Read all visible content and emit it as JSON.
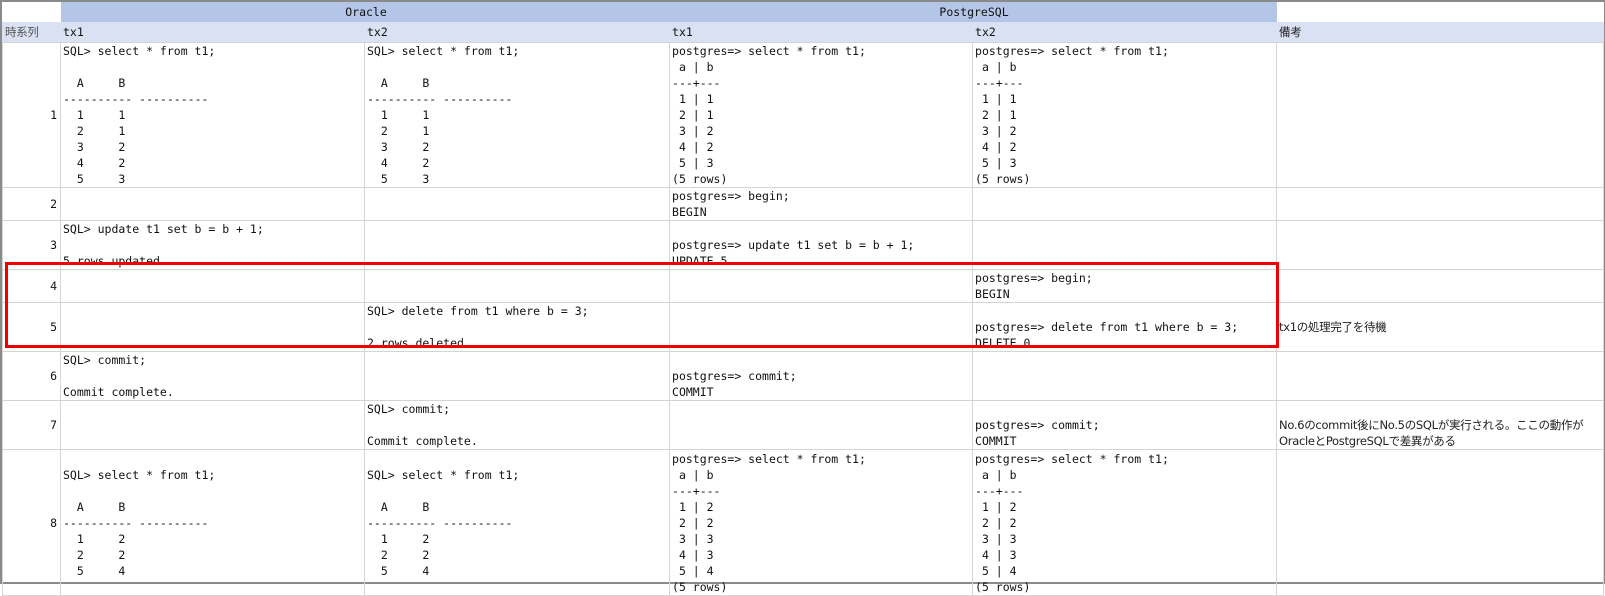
{
  "header": {
    "groups": [
      "Oracle",
      "PostgreSQL"
    ],
    "columns": [
      "時系列",
      "tx1",
      "tx2",
      "tx1",
      "tx2",
      "備考"
    ]
  },
  "rows": [
    {
      "no": "1",
      "ora_tx1": "SQL> select * from t1;\n\n  A     B\n---------- ----------\n  1     1\n  2     1\n  3     2\n  4     2\n  5     3",
      "ora_tx2": "SQL> select * from t1;\n\n  A     B\n---------- ----------\n  1     1\n  2     1\n  3     2\n  4     2\n  5     3",
      "pg_tx1": "postgres=> select * from t1;\n a | b\n---+---\n 1 | 1\n 2 | 1\n 3 | 2\n 4 | 2\n 5 | 3\n(5 rows)",
      "pg_tx2": "postgres=> select * from t1;\n a | b\n---+---\n 1 | 1\n 2 | 1\n 3 | 2\n 4 | 2\n 5 | 3\n(5 rows)",
      "note": ""
    },
    {
      "no": "2",
      "ora_tx1": "",
      "ora_tx2": "",
      "pg_tx1": "postgres=> begin;\nBEGIN",
      "pg_tx2": "",
      "note": ""
    },
    {
      "no": "3",
      "ora_tx1": "SQL> update t1 set b = b + 1;\n\n5 rows updated.",
      "ora_tx2": "",
      "pg_tx1": "postgres=> update t1 set b = b + 1;\nUPDATE 5",
      "pg_tx2": "",
      "note": ""
    },
    {
      "no": "4",
      "ora_tx1": "",
      "ora_tx2": "",
      "pg_tx1": "",
      "pg_tx2": "postgres=> begin;\nBEGIN",
      "note": ""
    },
    {
      "no": "5",
      "ora_tx1": "",
      "ora_tx2": "SQL> delete from t1 where b = 3;\n\n2 rows deleted.",
      "pg_tx1": "",
      "pg_tx2": "postgres=> delete from t1 where b = 3;\nDELETE 0",
      "note": "tx1の処理完了を待機"
    },
    {
      "no": "6",
      "ora_tx1": "SQL> commit;\n\nCommit complete.",
      "ora_tx2": "",
      "pg_tx1": "postgres=> commit;\nCOMMIT",
      "pg_tx2": "",
      "note": ""
    },
    {
      "no": "7",
      "ora_tx1": "",
      "ora_tx2": "SQL> commit;\n\nCommit complete.",
      "pg_tx1": "",
      "pg_tx2": "postgres=> commit;\nCOMMIT",
      "note": "No.6のcommit後にNo.5のSQLが実行される。ここの動作が\nOracleとPostgreSQLで差異がある"
    },
    {
      "no": "8",
      "ora_tx1": "SQL> select * from t1;\n\n  A     B\n---------- ----------\n  1     2\n  2     2\n  5     4",
      "ora_tx2": "SQL> select * from t1;\n\n  A     B\n---------- ----------\n  1     2\n  2     2\n  5     4",
      "pg_tx1": "postgres=> select * from t1;\n a | b\n---+---\n 1 | 2\n 2 | 2\n 3 | 3\n 4 | 3\n 5 | 4\n(5 rows)",
      "pg_tx2": "postgres=> select * from t1;\n a | b\n---+---\n 1 | 2\n 2 | 2\n 3 | 3\n 4 | 3\n 5 | 4\n(5 rows)",
      "note": ""
    }
  ],
  "colors": {
    "group_header": "#b4c6e7",
    "column_header": "#d9e1f2",
    "highlight": "#ee0000"
  }
}
